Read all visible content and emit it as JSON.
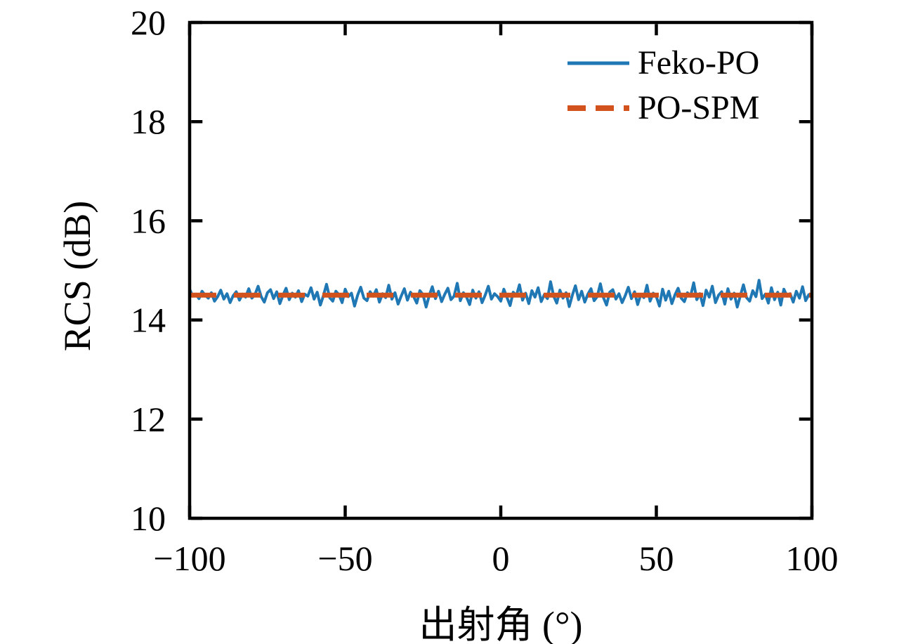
{
  "figure": {
    "background": "#ffffff",
    "axis_color": "#000000"
  },
  "chart_data": {
    "type": "line",
    "title": "",
    "xlabel": "出射角 (°)",
    "ylabel": "RCS (dB)",
    "xlim": [
      -100,
      100
    ],
    "ylim": [
      10,
      20
    ],
    "xticks": [
      -100,
      -50,
      0,
      50,
      100
    ],
    "xtick_labels": [
      "−100",
      "−50",
      "0",
      "50",
      "100"
    ],
    "yticks": [
      10,
      12,
      14,
      16,
      18,
      20
    ],
    "ytick_labels": [
      "10",
      "12",
      "14",
      "16",
      "18",
      "20"
    ],
    "grid": false,
    "legend_position": "top-right",
    "series": [
      {
        "name": "Feko-PO",
        "color": "#1f77b4",
        "line_style": "solid",
        "line_width": 4,
        "x_start": -100,
        "x_step": 1,
        "values": [
          14.62,
          14.48,
          14.52,
          14.43,
          14.58,
          14.5,
          14.44,
          14.55,
          14.38,
          14.47,
          14.6,
          14.42,
          14.53,
          14.35,
          14.49,
          14.57,
          14.4,
          14.52,
          14.46,
          14.63,
          14.44,
          14.51,
          14.68,
          14.47,
          14.36,
          14.55,
          14.61,
          14.43,
          14.57,
          14.33,
          14.5,
          14.64,
          14.41,
          14.54,
          14.46,
          14.59,
          14.37,
          14.52,
          14.48,
          14.65,
          14.42,
          14.56,
          14.3,
          14.49,
          14.72,
          14.45,
          14.38,
          14.58,
          14.51,
          14.35,
          14.62,
          14.47,
          14.54,
          14.28,
          14.5,
          14.66,
          14.44,
          14.39,
          14.57,
          14.48,
          14.61,
          14.36,
          14.53,
          14.45,
          14.7,
          14.42,
          14.55,
          14.32,
          14.48,
          14.63,
          14.4,
          14.56,
          14.47,
          14.34,
          14.59,
          14.51,
          14.26,
          14.49,
          14.67,
          14.43,
          14.58,
          14.37,
          14.52,
          14.64,
          14.41,
          14.48,
          14.74,
          14.39,
          14.55,
          14.46,
          14.31,
          14.6,
          14.44,
          14.57,
          14.35,
          14.5,
          14.68,
          14.42,
          14.53,
          14.47,
          14.38,
          14.62,
          14.45,
          14.29,
          14.56,
          14.49,
          14.71,
          14.4,
          14.54,
          14.33,
          14.59,
          14.46,
          14.65,
          14.37,
          14.51,
          14.43,
          14.77,
          14.48,
          14.34,
          14.6,
          14.44,
          14.55,
          14.27,
          14.5,
          14.69,
          14.41,
          14.58,
          14.36,
          14.52,
          14.63,
          14.39,
          14.47,
          14.73,
          14.45,
          14.3,
          14.56,
          14.61,
          14.42,
          14.53,
          14.35,
          14.49,
          14.66,
          14.43,
          14.57,
          14.31,
          14.52,
          14.45,
          14.7,
          14.38,
          14.54,
          14.47,
          14.28,
          14.62,
          14.4,
          14.58,
          14.33,
          14.51,
          14.64,
          14.44,
          14.37,
          14.55,
          14.48,
          14.75,
          14.41,
          14.53,
          14.29,
          14.6,
          14.46,
          14.68,
          14.35,
          14.5,
          14.57,
          14.32,
          14.63,
          14.42,
          14.54,
          14.26,
          14.49,
          14.71,
          14.45,
          14.38,
          14.59,
          14.47,
          14.8,
          14.43,
          14.52,
          14.34,
          14.65,
          14.41,
          14.56,
          14.3,
          14.62,
          14.48,
          14.53,
          14.36,
          14.58,
          14.44,
          14.67,
          14.39,
          14.51,
          14.47
        ]
      },
      {
        "name": "PO-SPM",
        "color": "#d2521e",
        "line_style": "dashed",
        "line_width": 7,
        "x_start": -100,
        "x_step": 200,
        "values": [
          14.5,
          14.5
        ]
      }
    ]
  }
}
